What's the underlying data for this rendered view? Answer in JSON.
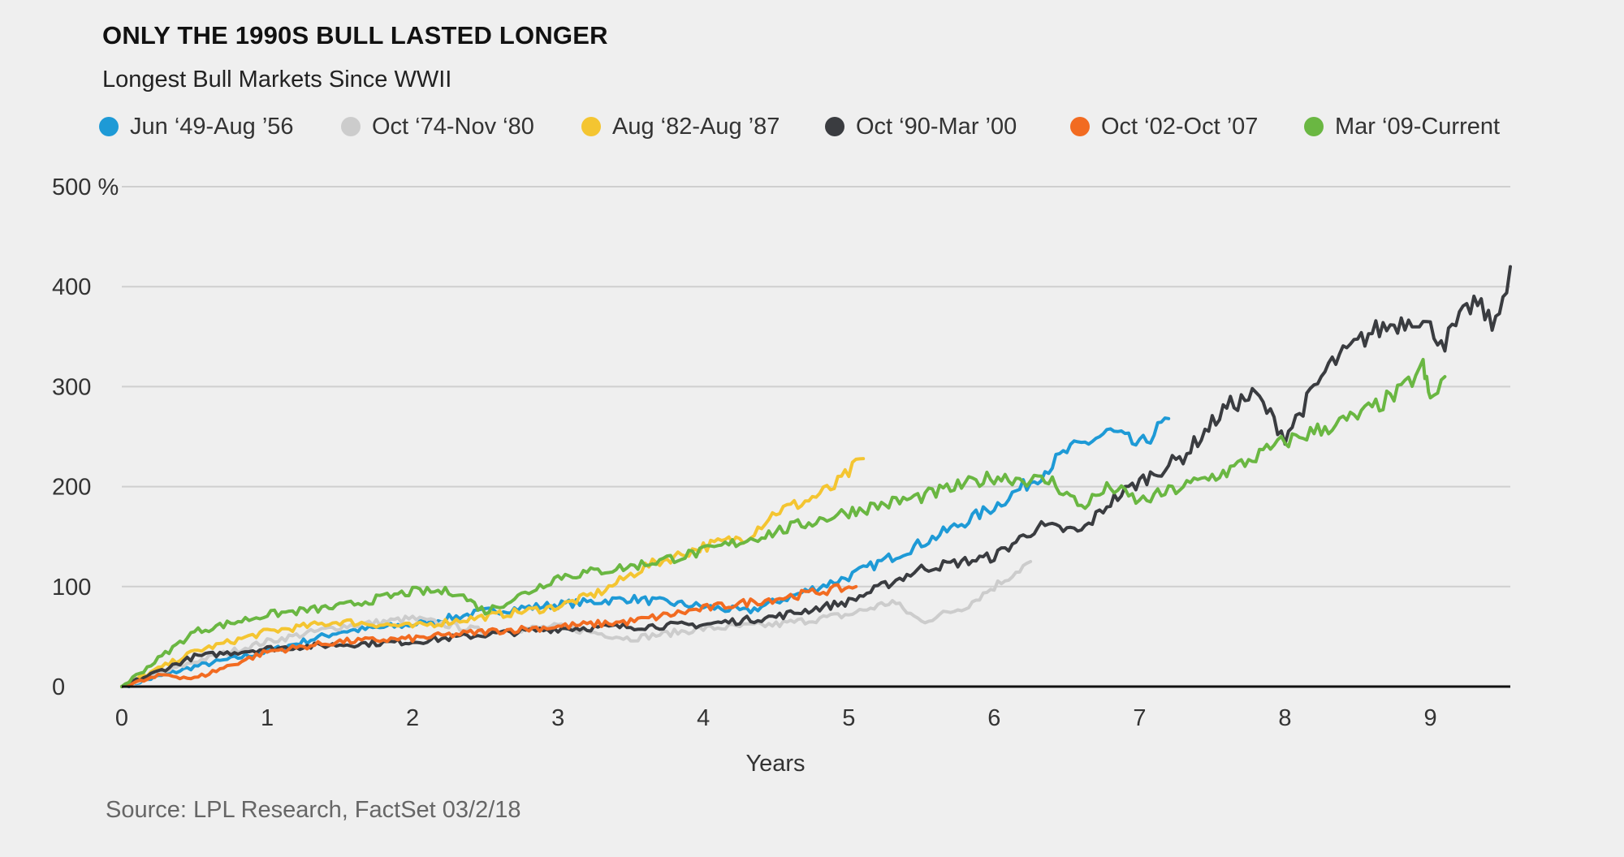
{
  "title": "ONLY THE 1990S BULL LASTED LONGER",
  "subtitle": "Longest Bull Markets Since WWII",
  "source": "Source: LPL Research, FactSet 03/2/18",
  "chart_data": {
    "type": "line",
    "title": "ONLY THE 1990S BULL LASTED LONGER",
    "subtitle": "Longest Bull Markets Since WWII",
    "xlabel": "Years",
    "ylabel": "",
    "xlim": [
      0,
      9.55
    ],
    "ylim": [
      0,
      500
    ],
    "x_ticks": [
      0,
      1,
      2,
      3,
      4,
      5,
      6,
      7,
      8,
      9
    ],
    "y_ticks": [
      0,
      100,
      200,
      300,
      400,
      500
    ],
    "y_tick_labels": [
      "0",
      "100",
      "200",
      "300",
      "400",
      "500 %"
    ],
    "grid": "horizontal",
    "legend_position": "top",
    "series": [
      {
        "name": "Jun ‘49-Aug ’56",
        "color": "#1e9ad6",
        "x": [
          0,
          0.5,
          1.0,
          1.5,
          2.0,
          2.5,
          3.0,
          3.5,
          4.0,
          4.3,
          4.7,
          5.0,
          5.3,
          5.6,
          6.0,
          6.3,
          6.5,
          6.8,
          7.0,
          7.2
        ],
        "y": [
          0,
          20,
          35,
          55,
          62,
          75,
          82,
          88,
          80,
          75,
          95,
          110,
          130,
          150,
          180,
          210,
          235,
          255,
          240,
          268
        ]
      },
      {
        "name": "Oct ‘74-Nov ‘80",
        "color": "#cccccc",
        "x": [
          0,
          0.5,
          1.0,
          1.5,
          2.0,
          2.5,
          3.0,
          3.5,
          4.0,
          4.5,
          5.0,
          5.3,
          5.5,
          5.8,
          6.0,
          6.25
        ],
        "y": [
          0,
          25,
          45,
          60,
          68,
          55,
          60,
          48,
          58,
          62,
          72,
          85,
          65,
          80,
          100,
          125
        ]
      },
      {
        "name": "Aug ‘82-Aug ’87",
        "color": "#f4c531",
        "x": [
          0,
          0.5,
          1.0,
          1.5,
          2.0,
          2.5,
          3.0,
          3.3,
          3.6,
          4.0,
          4.3,
          4.5,
          4.7,
          4.9,
          5.1
        ],
        "y": [
          0,
          35,
          55,
          65,
          60,
          70,
          80,
          95,
          120,
          140,
          150,
          175,
          185,
          200,
          228
        ]
      },
      {
        "name": "Oct ‘90-Mar ’00",
        "color": "#3a3c40",
        "x": [
          0,
          0.5,
          1.0,
          1.5,
          2.0,
          2.5,
          3.0,
          3.5,
          4.0,
          4.5,
          5.0,
          5.5,
          6.0,
          6.3,
          6.6,
          6.8,
          7.0,
          7.3,
          7.6,
          7.8,
          8.0,
          8.3,
          8.6,
          8.9,
          9.1,
          9.3,
          9.45,
          9.55
        ],
        "y": [
          0,
          30,
          38,
          42,
          45,
          52,
          58,
          60,
          62,
          70,
          85,
          118,
          130,
          160,
          155,
          185,
          205,
          230,
          280,
          292,
          250,
          320,
          355,
          370,
          345,
          385,
          360,
          420
        ]
      },
      {
        "name": "Oct ‘02-Oct ’07",
        "color": "#f26b21",
        "x": [
          0,
          0.3,
          0.5,
          1.0,
          1.5,
          2.0,
          2.5,
          3.0,
          3.5,
          4.0,
          4.5,
          4.8,
          5.05
        ],
        "y": [
          0,
          12,
          8,
          35,
          45,
          48,
          55,
          60,
          65,
          78,
          88,
          95,
          100
        ]
      },
      {
        "name": "Mar ‘09-Current",
        "color": "#6ab742",
        "x": [
          0,
          0.5,
          1.0,
          1.5,
          2.0,
          2.3,
          2.5,
          2.8,
          3.0,
          3.5,
          4.0,
          4.5,
          5.0,
          5.5,
          6.0,
          6.4,
          6.6,
          6.8,
          7.0,
          7.3,
          7.6,
          8.0,
          8.5,
          8.8,
          8.95,
          9.0,
          9.1
        ],
        "y": [
          0,
          55,
          72,
          80,
          95,
          95,
          75,
          95,
          110,
          120,
          135,
          155,
          175,
          190,
          210,
          205,
          180,
          200,
          185,
          200,
          215,
          245,
          270,
          295,
          320,
          285,
          310
        ]
      }
    ]
  }
}
